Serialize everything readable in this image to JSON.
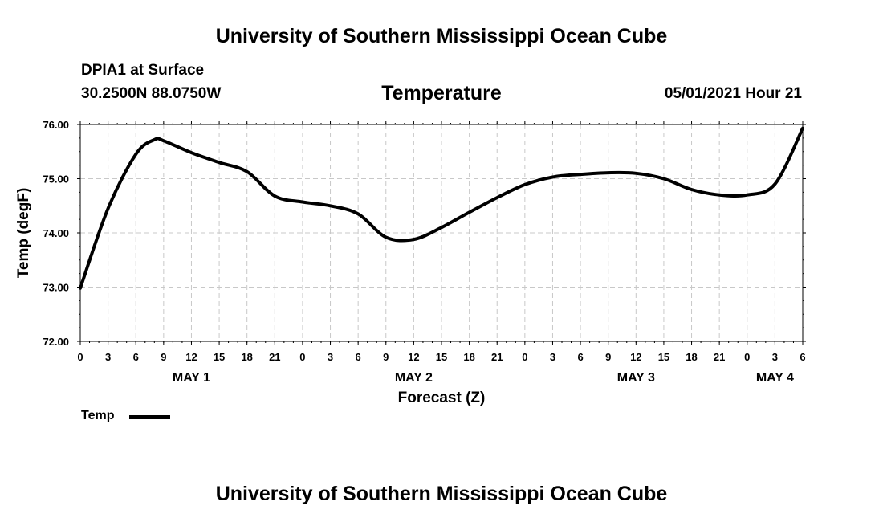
{
  "header": {
    "title": "University of Southern Mississippi Ocean Cube",
    "station": "DPIA1 at Surface",
    "coords": "30.2500N  88.0750W",
    "date_hour": "05/01/2021 Hour 21"
  },
  "footer": {
    "title": "University of Southern Mississippi Ocean Cube"
  },
  "legend": {
    "label": "Temp"
  },
  "chart_data": {
    "type": "line",
    "title": "Temperature",
    "xlabel": "Forecast (Z)",
    "ylabel": "Temp (degF)",
    "ylim": [
      72,
      76
    ],
    "xlim": [
      0,
      78
    ],
    "yticks": [
      72,
      73,
      74,
      75,
      76
    ],
    "ytick_labels": [
      "72.00",
      "73.00",
      "74.00",
      "75.00",
      "76.00"
    ],
    "xtick_labels": [
      "0",
      "3",
      "6",
      "9",
      "12",
      "15",
      "18",
      "21",
      "0",
      "3",
      "6",
      "9",
      "12",
      "15",
      "18",
      "21",
      "0",
      "3",
      "6",
      "9",
      "12",
      "15",
      "18",
      "21",
      "0",
      "3",
      "6"
    ],
    "day_labels": [
      {
        "label": "MAY 1",
        "hour": 12
      },
      {
        "label": "MAY 2",
        "hour": 36
      },
      {
        "label": "MAY 3",
        "hour": 60
      },
      {
        "label": "MAY 4",
        "hour": 75
      }
    ],
    "grid": true,
    "legend_position": "bottom-left",
    "series": [
      {
        "name": "Temp",
        "color": "#000000",
        "x": [
          0,
          3,
          6,
          8,
          9,
          12,
          15,
          18,
          21,
          24,
          27,
          30,
          33,
          36,
          39,
          42,
          45,
          48,
          51,
          54,
          57,
          60,
          63,
          66,
          69,
          72,
          75,
          78
        ],
        "y": [
          72.98,
          74.45,
          75.45,
          75.72,
          75.7,
          75.48,
          75.3,
          75.13,
          74.68,
          74.57,
          74.5,
          74.35,
          73.92,
          73.88,
          74.1,
          74.38,
          74.65,
          74.89,
          75.03,
          75.08,
          75.11,
          75.1,
          75.0,
          74.8,
          74.7,
          74.7,
          74.9,
          75.93
        ]
      }
    ]
  }
}
